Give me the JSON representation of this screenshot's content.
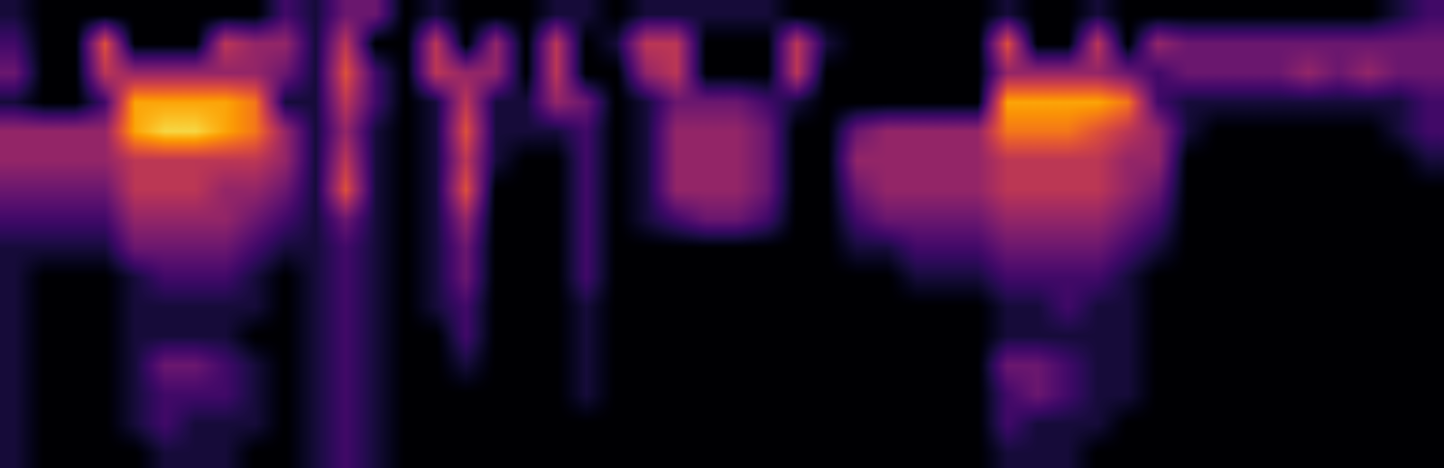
{
  "chart_data": {
    "type": "spectrogram",
    "color": "inferno",
    "tick_labels": false,
    "color_range": [
      0,
      10
    ],
    "cells": [
      [
        1,
        0,
        0,
        0,
        0,
        0,
        0,
        0,
        0,
        2,
        1,
        3,
        3,
        0,
        1,
        0,
        0,
        0,
        1,
        1,
        0,
        1,
        1,
        1,
        1,
        1,
        0,
        0,
        0,
        0,
        0,
        0,
        0,
        1,
        0,
        0,
        1,
        0,
        0,
        0,
        0,
        0,
        0,
        0,
        0,
        0,
        1,
        2
      ],
      [
        2,
        0,
        0,
        6,
        0,
        0,
        0,
        5,
        4,
        4,
        1,
        5,
        0,
        0,
        5,
        0,
        4,
        0,
        5,
        0,
        1,
        5,
        5,
        0,
        0,
        0,
        5,
        1,
        0,
        0,
        0,
        0,
        0,
        6,
        0,
        0,
        5,
        0,
        4,
        3,
        3,
        3,
        3,
        3,
        3,
        3,
        3,
        3
      ],
      [
        3,
        0,
        0,
        5,
        4,
        4,
        4,
        4,
        4,
        3,
        1,
        6,
        2,
        0,
        5,
        4,
        4,
        0,
        5,
        0,
        0,
        4,
        5,
        0,
        0,
        0,
        5,
        0,
        0,
        0,
        0,
        0,
        0,
        4,
        4,
        4,
        4,
        3,
        2,
        3,
        3,
        3,
        3,
        4,
        3,
        4,
        3,
        3
      ],
      [
        1,
        0,
        0,
        2,
        8,
        8,
        8,
        8,
        7,
        1,
        1,
        5,
        2,
        0,
        1,
        5,
        1,
        1,
        4,
        3,
        0,
        1,
        3,
        3,
        3,
        2,
        1,
        0,
        0,
        0,
        0,
        0,
        0,
        8,
        8,
        8,
        8,
        7,
        2,
        1,
        1,
        1,
        1,
        1,
        1,
        1,
        1,
        2
      ],
      [
        4,
        4,
        4,
        4,
        8,
        9,
        9,
        8,
        7,
        4,
        1,
        4,
        1,
        0,
        1,
        6,
        1,
        1,
        1,
        2,
        0,
        1,
        4,
        4,
        4,
        3,
        0,
        0,
        3,
        4,
        4,
        4,
        4,
        7,
        7,
        7,
        6,
        5,
        4,
        1,
        0,
        0,
        0,
        0,
        0,
        0,
        1,
        2
      ],
      [
        4,
        4,
        4,
        4,
        5,
        5,
        5,
        5,
        5,
        4,
        1,
        5,
        1,
        0,
        1,
        5,
        1,
        0,
        0,
        2,
        0,
        1,
        4,
        4,
        4,
        3,
        0,
        0,
        4,
        4,
        4,
        4,
        4,
        5,
        5,
        5,
        5,
        4,
        4,
        0,
        0,
        0,
        0,
        0,
        0,
        0,
        0,
        1
      ],
      [
        3,
        3,
        3,
        3,
        5,
        5,
        5,
        4,
        4,
        3,
        1,
        6,
        1,
        0,
        1,
        6,
        0,
        0,
        0,
        2,
        0,
        1,
        4,
        4,
        4,
        3,
        0,
        0,
        3,
        4,
        4,
        4,
        4,
        5,
        5,
        5,
        5,
        4,
        3,
        0,
        0,
        0,
        0,
        0,
        0,
        0,
        0,
        0
      ],
      [
        2,
        2,
        2,
        2,
        4,
        4,
        4,
        4,
        3,
        2,
        1,
        3,
        1,
        0,
        1,
        4,
        0,
        0,
        0,
        2,
        0,
        1,
        2,
        3,
        3,
        2,
        0,
        0,
        2,
        3,
        3,
        3,
        3,
        4,
        4,
        4,
        4,
        3,
        2,
        0,
        0,
        0,
        0,
        0,
        0,
        0,
        0,
        0
      ],
      [
        1,
        1,
        1,
        1,
        3,
        3,
        3,
        3,
        2,
        1,
        1,
        2,
        1,
        0,
        1,
        3,
        0,
        0,
        0,
        2,
        0,
        0,
        0,
        0,
        0,
        0,
        0,
        0,
        1,
        1,
        2,
        2,
        2,
        3,
        3,
        3,
        3,
        2,
        1,
        0,
        0,
        0,
        0,
        0,
        0,
        0,
        0,
        0
      ],
      [
        1,
        0,
        0,
        0,
        1,
        2,
        2,
        2,
        1,
        0,
        1,
        2,
        1,
        0,
        1,
        3,
        0,
        0,
        0,
        2,
        0,
        0,
        0,
        0,
        0,
        0,
        0,
        0,
        0,
        0,
        1,
        1,
        1,
        2,
        2,
        2,
        2,
        1,
        0,
        0,
        0,
        0,
        0,
        0,
        0,
        0,
        0,
        0
      ],
      [
        1,
        0,
        0,
        0,
        1,
        1,
        1,
        1,
        1,
        0,
        1,
        2,
        1,
        0,
        1,
        2,
        0,
        0,
        0,
        1,
        0,
        0,
        0,
        0,
        0,
        0,
        0,
        0,
        0,
        0,
        0,
        0,
        0,
        1,
        1,
        2,
        1,
        1,
        0,
        0,
        0,
        0,
        0,
        0,
        0,
        0,
        0,
        0
      ],
      [
        1,
        0,
        0,
        0,
        1,
        1,
        1,
        1,
        0,
        0,
        1,
        2,
        1,
        0,
        0,
        2,
        0,
        0,
        0,
        1,
        0,
        0,
        0,
        0,
        0,
        0,
        0,
        0,
        0,
        0,
        0,
        0,
        0,
        1,
        1,
        1,
        1,
        1,
        0,
        0,
        0,
        0,
        0,
        0,
        0,
        0,
        0,
        0
      ],
      [
        1,
        0,
        0,
        0,
        1,
        3,
        3,
        2,
        1,
        0,
        1,
        2,
        1,
        0,
        0,
        1,
        0,
        0,
        0,
        1,
        0,
        0,
        0,
        0,
        0,
        0,
        0,
        0,
        0,
        0,
        0,
        0,
        0,
        3,
        3,
        2,
        1,
        1,
        0,
        0,
        0,
        0,
        0,
        0,
        0,
        0,
        0,
        0
      ],
      [
        1,
        0,
        0,
        0,
        1,
        2,
        2,
        2,
        1,
        0,
        1,
        2,
        1,
        0,
        0,
        0,
        0,
        0,
        0,
        1,
        0,
        0,
        0,
        0,
        0,
        0,
        0,
        0,
        0,
        0,
        0,
        0,
        0,
        2,
        3,
        2,
        1,
        1,
        0,
        0,
        0,
        0,
        0,
        0,
        0,
        0,
        0,
        0
      ],
      [
        1,
        0,
        0,
        0,
        1,
        2,
        1,
        1,
        1,
        0,
        1,
        2,
        1,
        0,
        0,
        0,
        0,
        0,
        0,
        0,
        0,
        0,
        0,
        0,
        0,
        0,
        0,
        0,
        0,
        0,
        0,
        0,
        0,
        2,
        1,
        1,
        1,
        0,
        0,
        0,
        0,
        0,
        0,
        0,
        0,
        0,
        0,
        0
      ],
      [
        1,
        0,
        0,
        0,
        0,
        1,
        1,
        1,
        0,
        0,
        1,
        2,
        1,
        0,
        0,
        0,
        0,
        0,
        0,
        0,
        0,
        0,
        0,
        0,
        0,
        0,
        0,
        0,
        0,
        0,
        0,
        0,
        0,
        1,
        1,
        1,
        0,
        0,
        0,
        0,
        0,
        0,
        0,
        0,
        0,
        0,
        0,
        0
      ]
    ]
  }
}
